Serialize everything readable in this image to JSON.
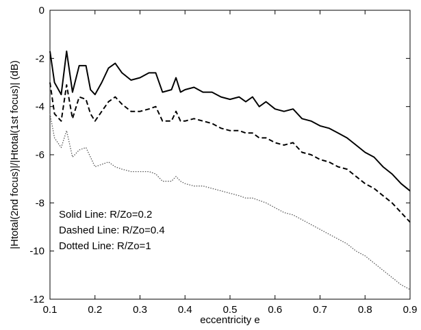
{
  "chart_data": {
    "type": "line",
    "xlabel": "eccentricity  e",
    "ylabel": "|Htotal(2nd focus)|/|Htotal(1st focus)| (dB)",
    "xlim": [
      0.1,
      0.9
    ],
    "ylim": [
      -12,
      0
    ],
    "xticks": [
      "0.1",
      "0.2",
      "0.3",
      "0.4",
      "0.5",
      "0.6",
      "0.7",
      "0.8",
      "0.9"
    ],
    "yticks": [
      "0",
      "-2",
      "-4",
      "-6",
      "-8",
      "-10",
      "-12"
    ],
    "grid": false,
    "annotations": [
      "Solid Line: R/Zo=0.2",
      "Dashed Line: R/Zo=0.4",
      "Dotted Line: R/Zo=1"
    ],
    "series": [
      {
        "style": "solid",
        "x": [
          0.1,
          0.11,
          0.125,
          0.137,
          0.15,
          0.165,
          0.18,
          0.19,
          0.2,
          0.215,
          0.23,
          0.245,
          0.26,
          0.28,
          0.3,
          0.32,
          0.335,
          0.35,
          0.37,
          0.38,
          0.39,
          0.4,
          0.42,
          0.44,
          0.46,
          0.48,
          0.5,
          0.52,
          0.535,
          0.55,
          0.565,
          0.58,
          0.6,
          0.62,
          0.64,
          0.66,
          0.68,
          0.7,
          0.72,
          0.74,
          0.76,
          0.78,
          0.8,
          0.82,
          0.84,
          0.86,
          0.88,
          0.9
        ],
        "y": [
          -1.7,
          -3.0,
          -3.5,
          -1.7,
          -3.4,
          -2.3,
          -2.3,
          -3.3,
          -3.5,
          -3.0,
          -2.4,
          -2.2,
          -2.6,
          -2.9,
          -2.8,
          -2.6,
          -2.6,
          -3.4,
          -3.3,
          -2.8,
          -3.4,
          -3.3,
          -3.2,
          -3.4,
          -3.4,
          -3.6,
          -3.7,
          -3.6,
          -3.8,
          -3.6,
          -4.0,
          -3.8,
          -4.1,
          -4.2,
          -4.1,
          -4.5,
          -4.6,
          -4.8,
          -4.9,
          -5.1,
          -5.3,
          -5.6,
          -5.9,
          -6.1,
          -6.5,
          -6.8,
          -7.2,
          -7.5
        ]
      },
      {
        "style": "dashed",
        "x": [
          0.1,
          0.11,
          0.125,
          0.137,
          0.15,
          0.165,
          0.18,
          0.19,
          0.2,
          0.215,
          0.23,
          0.245,
          0.26,
          0.28,
          0.3,
          0.32,
          0.335,
          0.35,
          0.37,
          0.38,
          0.39,
          0.4,
          0.42,
          0.44,
          0.46,
          0.48,
          0.5,
          0.52,
          0.535,
          0.55,
          0.565,
          0.58,
          0.6,
          0.62,
          0.64,
          0.66,
          0.68,
          0.7,
          0.72,
          0.74,
          0.76,
          0.78,
          0.8,
          0.82,
          0.84,
          0.86,
          0.88,
          0.9
        ],
        "y": [
          -3.0,
          -4.3,
          -4.6,
          -3.1,
          -4.5,
          -3.6,
          -3.7,
          -4.3,
          -4.6,
          -4.2,
          -3.8,
          -3.6,
          -3.9,
          -4.2,
          -4.2,
          -4.1,
          -4.0,
          -4.6,
          -4.6,
          -4.2,
          -4.6,
          -4.6,
          -4.5,
          -4.6,
          -4.7,
          -4.9,
          -5.0,
          -5.0,
          -5.1,
          -5.1,
          -5.3,
          -5.3,
          -5.5,
          -5.6,
          -5.5,
          -5.9,
          -6.0,
          -6.2,
          -6.3,
          -6.5,
          -6.6,
          -6.9,
          -7.2,
          -7.4,
          -7.7,
          -8.0,
          -8.4,
          -8.8
        ]
      },
      {
        "style": "dotted",
        "x": [
          0.1,
          0.11,
          0.125,
          0.137,
          0.15,
          0.165,
          0.18,
          0.19,
          0.2,
          0.215,
          0.23,
          0.245,
          0.26,
          0.28,
          0.3,
          0.32,
          0.335,
          0.35,
          0.37,
          0.38,
          0.39,
          0.4,
          0.42,
          0.44,
          0.46,
          0.48,
          0.5,
          0.52,
          0.535,
          0.55,
          0.565,
          0.58,
          0.6,
          0.62,
          0.64,
          0.66,
          0.68,
          0.7,
          0.72,
          0.74,
          0.76,
          0.78,
          0.8,
          0.82,
          0.84,
          0.86,
          0.88,
          0.9
        ],
        "y": [
          -4.3,
          -5.3,
          -5.7,
          -5.0,
          -6.1,
          -5.8,
          -5.7,
          -6.1,
          -6.5,
          -6.4,
          -6.3,
          -6.5,
          -6.6,
          -6.7,
          -6.7,
          -6.7,
          -6.8,
          -7.1,
          -7.1,
          -6.9,
          -7.1,
          -7.2,
          -7.3,
          -7.3,
          -7.4,
          -7.5,
          -7.6,
          -7.7,
          -7.8,
          -7.8,
          -7.9,
          -8.0,
          -8.2,
          -8.4,
          -8.5,
          -8.7,
          -8.9,
          -9.1,
          -9.3,
          -9.5,
          -9.7,
          -10.0,
          -10.2,
          -10.5,
          -10.8,
          -11.1,
          -11.4,
          -11.6
        ]
      }
    ]
  }
}
